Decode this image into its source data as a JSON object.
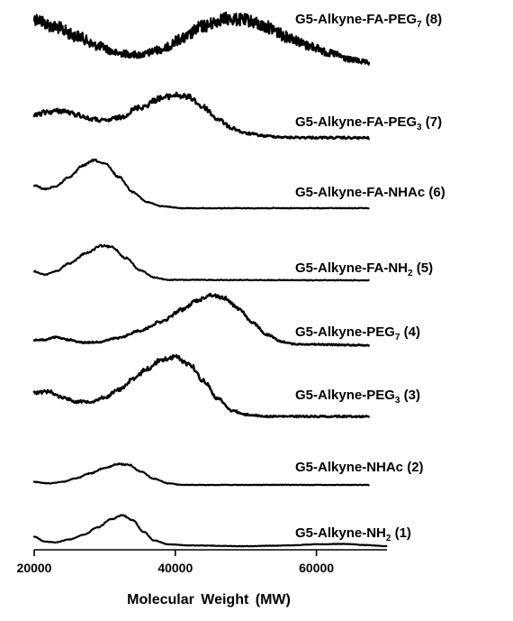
{
  "chart_data": {
    "type": "line",
    "title": "",
    "xlabel": "Molecular  Weight (MW)",
    "ylabel": "",
    "xlim": [
      20000,
      70000
    ],
    "x_ticks": [
      "20000",
      "40000",
      "60000"
    ],
    "x_tick_values": [
      20000,
      40000,
      60000
    ],
    "grid": false,
    "legend": "labels beside each trace",
    "series": [
      {
        "name": "G5-Alkyne-FA-PEG7 (8)",
        "label_main": "G5-Alkyne-FA-PEG",
        "label_sub": "7",
        "label_tail": " (8)",
        "noise": 1.0,
        "x_end": 67500,
        "points": [
          [
            20000,
            0.95
          ],
          [
            23000,
            0.78
          ],
          [
            26000,
            0.6
          ],
          [
            29000,
            0.4
          ],
          [
            32000,
            0.25
          ],
          [
            35000,
            0.22
          ],
          [
            38000,
            0.33
          ],
          [
            41000,
            0.55
          ],
          [
            44000,
            0.8
          ],
          [
            47000,
            0.95
          ],
          [
            50000,
            0.92
          ],
          [
            53000,
            0.78
          ],
          [
            56000,
            0.58
          ],
          [
            59000,
            0.4
          ],
          [
            62000,
            0.25
          ],
          [
            65000,
            0.12
          ],
          [
            67500,
            0.06
          ]
        ]
      },
      {
        "name": "G5-Alkyne-FA-PEG3 (7)",
        "label_main": "G5-Alkyne-FA-PEG",
        "label_sub": "3",
        "label_tail": " (7)",
        "noise": 0.45,
        "x_end": 67500,
        "points": [
          [
            20000,
            0.5
          ],
          [
            22000,
            0.58
          ],
          [
            24000,
            0.6
          ],
          [
            26000,
            0.52
          ],
          [
            28000,
            0.42
          ],
          [
            30000,
            0.38
          ],
          [
            32000,
            0.45
          ],
          [
            35000,
            0.68
          ],
          [
            38000,
            0.88
          ],
          [
            40000,
            0.95
          ],
          [
            42000,
            0.9
          ],
          [
            44000,
            0.68
          ],
          [
            46000,
            0.42
          ],
          [
            48000,
            0.22
          ],
          [
            50000,
            0.1
          ],
          [
            53000,
            0.04
          ],
          [
            56000,
            0.01
          ],
          [
            67500,
            0.0
          ]
        ]
      },
      {
        "name": "G5-Alkyne-FA-NHAc (6)",
        "label_main": "G5-Alkyne-FA-NHAc (6)",
        "label_sub": "",
        "label_tail": "",
        "noise": 0.15,
        "x_end": 67500,
        "points": [
          [
            20000,
            0.45
          ],
          [
            21500,
            0.38
          ],
          [
            23000,
            0.43
          ],
          [
            25000,
            0.62
          ],
          [
            27000,
            0.85
          ],
          [
            28500,
            0.95
          ],
          [
            30000,
            0.88
          ],
          [
            32000,
            0.62
          ],
          [
            34000,
            0.32
          ],
          [
            36000,
            0.12
          ],
          [
            38000,
            0.04
          ],
          [
            41000,
            0.0
          ],
          [
            67500,
            0.0
          ]
        ]
      },
      {
        "name": "G5-Alkyne-FA-NH2 (5)",
        "label_main": "G5-Alkyne-FA-NH",
        "label_sub": "2",
        "label_tail": " (5)",
        "noise": 0.15,
        "x_end": 67500,
        "points": [
          [
            20000,
            0.22
          ],
          [
            21500,
            0.14
          ],
          [
            23000,
            0.22
          ],
          [
            25000,
            0.42
          ],
          [
            27500,
            0.68
          ],
          [
            29500,
            0.85
          ],
          [
            31000,
            0.82
          ],
          [
            33000,
            0.55
          ],
          [
            35000,
            0.25
          ],
          [
            37000,
            0.07
          ],
          [
            39000,
            0.01
          ],
          [
            67500,
            0.0
          ]
        ]
      },
      {
        "name": "G5-Alkyne-PEG7 (4)",
        "label_main": "G5-Alkyne-PEG",
        "label_sub": "7",
        "label_tail": " (4)",
        "noise": 0.25,
        "x_end": 67500,
        "points": [
          [
            20000,
            0.1
          ],
          [
            21500,
            0.1
          ],
          [
            23000,
            0.15
          ],
          [
            25000,
            0.1
          ],
          [
            27000,
            0.05
          ],
          [
            29000,
            0.06
          ],
          [
            32000,
            0.14
          ],
          [
            35000,
            0.28
          ],
          [
            38000,
            0.45
          ],
          [
            41000,
            0.68
          ],
          [
            43000,
            0.85
          ],
          [
            45000,
            0.96
          ],
          [
            47000,
            0.9
          ],
          [
            49000,
            0.7
          ],
          [
            51000,
            0.42
          ],
          [
            53000,
            0.2
          ],
          [
            55000,
            0.07
          ],
          [
            57000,
            0.02
          ],
          [
            67500,
            0.0
          ]
        ]
      },
      {
        "name": "G5-Alkyne-PEG3 (3)",
        "label_main": "G5-Alkyne-PEG",
        "label_sub": "3",
        "label_tail": " (3)",
        "noise": 0.35,
        "x_end": 67500,
        "points": [
          [
            20000,
            0.4
          ],
          [
            22000,
            0.42
          ],
          [
            24000,
            0.32
          ],
          [
            26000,
            0.25
          ],
          [
            28000,
            0.25
          ],
          [
            30000,
            0.32
          ],
          [
            32000,
            0.45
          ],
          [
            34000,
            0.62
          ],
          [
            36000,
            0.8
          ],
          [
            38000,
            0.95
          ],
          [
            40000,
            1.0
          ],
          [
            42000,
            0.88
          ],
          [
            44000,
            0.6
          ],
          [
            46000,
            0.3
          ],
          [
            48000,
            0.1
          ],
          [
            50000,
            0.03
          ],
          [
            53000,
            0.0
          ],
          [
            67500,
            0.0
          ]
        ]
      },
      {
        "name": "G5-Alkyne-NHAc (2)",
        "label_main": "G5-Alkyne-NHAc (2)",
        "label_sub": "",
        "label_tail": "",
        "noise": 0.12,
        "x_end": 67500,
        "points": [
          [
            20000,
            0.1
          ],
          [
            22000,
            0.05
          ],
          [
            24000,
            0.1
          ],
          [
            26000,
            0.22
          ],
          [
            28000,
            0.38
          ],
          [
            30000,
            0.55
          ],
          [
            32000,
            0.68
          ],
          [
            33500,
            0.65
          ],
          [
            35000,
            0.45
          ],
          [
            37000,
            0.2
          ],
          [
            39000,
            0.05
          ],
          [
            41000,
            0.0
          ],
          [
            67500,
            0.0
          ]
        ]
      },
      {
        "name": "G5-Alkyne-NH2 (1)",
        "label_main": "G5-Alkyne-NH",
        "label_sub": "2",
        "label_tail": " (1)",
        "noise": 0.08,
        "x_end": 70000,
        "points": [
          [
            20000,
            0.25
          ],
          [
            21500,
            0.12
          ],
          [
            23000,
            0.1
          ],
          [
            25000,
            0.18
          ],
          [
            27000,
            0.3
          ],
          [
            29000,
            0.5
          ],
          [
            31000,
            0.72
          ],
          [
            32500,
            0.82
          ],
          [
            34000,
            0.68
          ],
          [
            35500,
            0.38
          ],
          [
            37000,
            0.15
          ],
          [
            39000,
            0.05
          ],
          [
            42000,
            0.02
          ],
          [
            50000,
            0.0
          ],
          [
            56000,
            0.02
          ],
          [
            60000,
            0.05
          ],
          [
            64000,
            0.06
          ],
          [
            67000,
            0.03
          ],
          [
            70000,
            0.0
          ]
        ]
      }
    ]
  }
}
